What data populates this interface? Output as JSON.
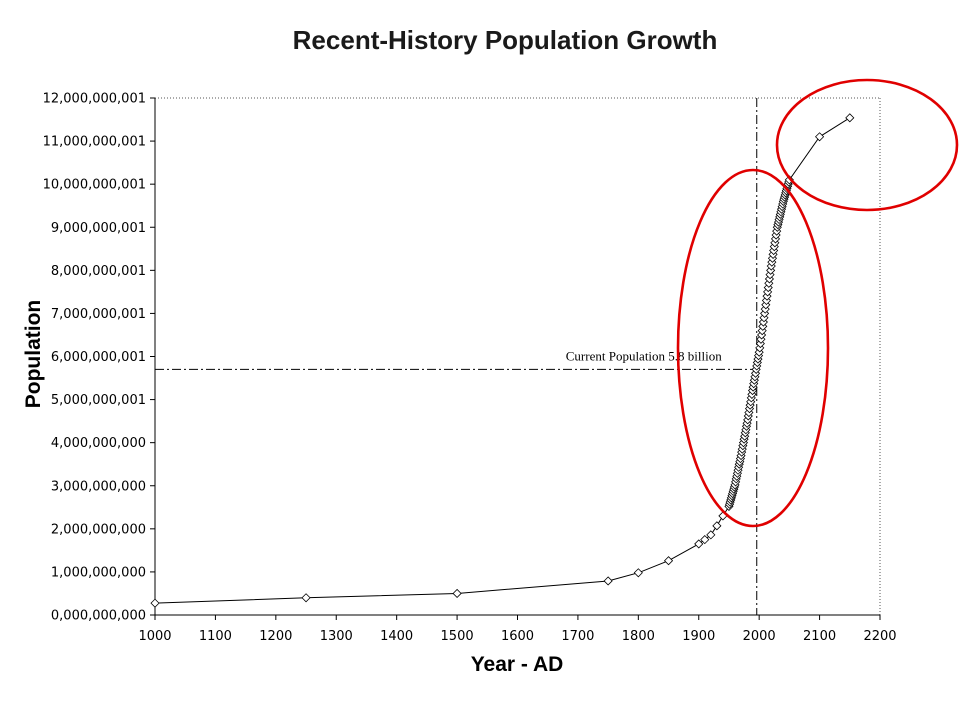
{
  "chart_data": {
    "type": "line",
    "title": "Recent-History Population Growth",
    "xlabel": "Year - AD",
    "ylabel": "Population",
    "xlim": [
      1000,
      2200
    ],
    "ylim": [
      0,
      12000000000
    ],
    "x_ticks": [
      1000,
      1100,
      1200,
      1300,
      1400,
      1500,
      1600,
      1700,
      1800,
      1900,
      2000,
      2100,
      2200
    ],
    "y_ticks": [
      0,
      1000000000,
      2000000000,
      3000000000,
      4000000000,
      5000000000,
      6000000000,
      7000000000,
      8000000000,
      9000000000,
      10000000000,
      11000000000,
      12000000000
    ],
    "y_tick_labels": [
      "0,000,000,000",
      "1,000,000,000",
      "2,000,000,000",
      "3,000,000,000",
      "4,000,000,000",
      "5,000,000,001",
      "6,000,000,001",
      "7,000,000,001",
      "8,000,000,001",
      "9,000,000,001",
      "10,000,000,001",
      "11,000,000,001",
      "12,000,000,001"
    ],
    "grid": false,
    "legend": "none",
    "marker": "diamond",
    "series": [
      {
        "x": [
          1000,
          1250,
          1500,
          1750,
          1800,
          1850,
          1900,
          1910,
          1920,
          1930,
          1940,
          1950,
          1951,
          1952,
          1953,
          1954,
          1955,
          1956,
          1957,
          1958,
          1959,
          1960,
          1961,
          1962,
          1963,
          1964,
          1965,
          1966,
          1967,
          1968,
          1969,
          1970,
          1971,
          1972,
          1973,
          1974,
          1975,
          1976,
          1977,
          1978,
          1979,
          1980,
          1981,
          1982,
          1983,
          1984,
          1985,
          1986,
          1987,
          1988,
          1989,
          1990,
          1991,
          1992,
          1993,
          1994,
          1995,
          1996,
          1997,
          1998,
          1999,
          2000,
          2001,
          2002,
          2003,
          2004,
          2005,
          2006,
          2007,
          2008,
          2009,
          2010,
          2011,
          2012,
          2013,
          2014,
          2015,
          2016,
          2017,
          2018,
          2019,
          2020,
          2021,
          2022,
          2023,
          2024,
          2025,
          2026,
          2027,
          2028,
          2029,
          2030,
          2031,
          2032,
          2033,
          2034,
          2035,
          2036,
          2037,
          2038,
          2039,
          2040,
          2041,
          2042,
          2043,
          2044,
          2045,
          2046,
          2047,
          2048,
          2049,
          2050,
          2100,
          2150
        ],
        "y": [
          275000000,
          400000000,
          500000000,
          790000000,
          980000000,
          1260000000,
          1650000000,
          1750000000,
          1860000000,
          2070000000,
          2300000000,
          2520000000,
          2570000000,
          2620000000,
          2670000000,
          2720000000,
          2770000000,
          2820000000,
          2870000000,
          2920000000,
          2970000000,
          3020000000,
          3090000000,
          3160000000,
          3220000000,
          3290000000,
          3360000000,
          3430000000,
          3500000000,
          3560000000,
          3630000000,
          3700000000,
          3780000000,
          3850000000,
          3930000000,
          4000000000,
          4080000000,
          4150000000,
          4230000000,
          4300000000,
          4380000000,
          4450000000,
          4530000000,
          4620000000,
          4700000000,
          4790000000,
          4870000000,
          4950000000,
          5040000000,
          5120000000,
          5210000000,
          5290000000,
          5370000000,
          5450000000,
          5530000000,
          5610000000,
          5700000000,
          5780000000,
          5860000000,
          5940000000,
          6020000000,
          6100000000,
          6200000000,
          6300000000,
          6400000000,
          6500000000,
          6600000000,
          6700000000,
          6800000000,
          6900000000,
          7000000000,
          7100000000,
          7200000000,
          7300000000,
          7400000000,
          7500000000,
          7600000000,
          7700000000,
          7800000000,
          7900000000,
          8000000000,
          8100000000,
          8190000000,
          8280000000,
          8370000000,
          8460000000,
          8550000000,
          8640000000,
          8730000000,
          8820000000,
          8910000000,
          9000000000,
          9060000000,
          9120000000,
          9180000000,
          9240000000,
          9300000000,
          9360000000,
          9420000000,
          9480000000,
          9540000000,
          9600000000,
          9650000000,
          9700000000,
          9750000000,
          9800000000,
          9850000000,
          9900000000,
          9950000000,
          10000000000,
          10050000000,
          10100000000,
          11100000000,
          11540000000
        ]
      }
    ],
    "reference_lines": {
      "x": 1996,
      "y": 5700000000
    },
    "annotation": {
      "text": "Current Population 5.8 billion"
    }
  },
  "colors": {
    "line": "#000000",
    "marker_fill": "#ffffff",
    "reference": "#000000",
    "highlight": "#e00000"
  }
}
